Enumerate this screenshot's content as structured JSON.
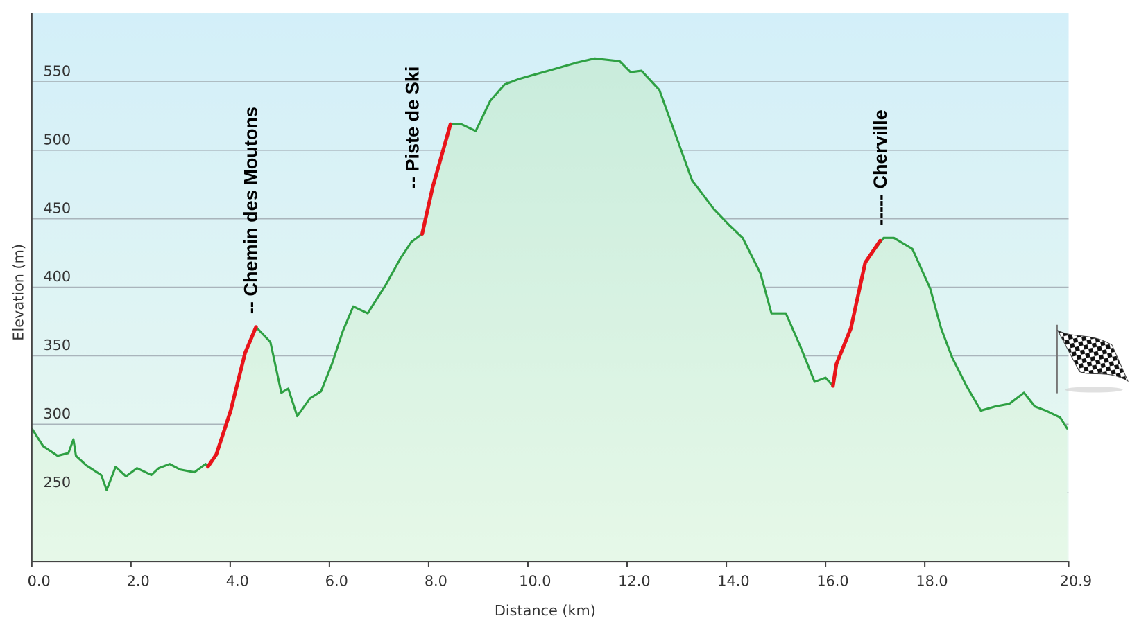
{
  "chart_data": {
    "type": "line",
    "x_label": "Distance  (km)",
    "y_label": "Elevation (m)",
    "xlim": [
      0,
      20.9
    ],
    "ylim": [
      200,
      600
    ],
    "xticks": [
      {
        "value": 0,
        "label": "0.0"
      },
      {
        "value": 2,
        "label": "2.0"
      },
      {
        "value": 4,
        "label": "4.0"
      },
      {
        "value": 6,
        "label": "6.0"
      },
      {
        "value": 8,
        "label": "8.0"
      },
      {
        "value": 10,
        "label": "10.0"
      },
      {
        "value": 12,
        "label": "12.0"
      },
      {
        "value": 14,
        "label": "14.0"
      },
      {
        "value": 16,
        "label": "16.0"
      },
      {
        "value": 18,
        "label": "18.0"
      },
      20.9
    ],
    "yticks": [
      250,
      300,
      350,
      400,
      450,
      500,
      550
    ],
    "grid": true,
    "series": [
      {
        "color": "#2ea043",
        "x": [
          0,
          0.23,
          0.52,
          0.74,
          0.84,
          0.89,
          1.1,
          1.4,
          1.51,
          1.69,
          1.9,
          2.12,
          2.41,
          2.56,
          2.78,
          2.99,
          3.28,
          3.5,
          3.55,
          3.72,
          4.01,
          4.3,
          4.52,
          4.81,
          5.03,
          5.17,
          5.35,
          5.61,
          5.83,
          6.05,
          6.27,
          6.48,
          6.77,
          7.14,
          7.43,
          7.65,
          7.87,
          8.08,
          8.44,
          8.66,
          8.95,
          9.24,
          9.53,
          9.82,
          10.41,
          10.99,
          11.35,
          11.85,
          12.07,
          12.29,
          12.65,
          12.94,
          13.31,
          13.75,
          14.04,
          14.33,
          14.69,
          14.91,
          15.2,
          15.49,
          15.78,
          16.0,
          16.15,
          16.22,
          16.51,
          16.8,
          17.17,
          17.38,
          17.75,
          18.11,
          18.33,
          18.55,
          18.84,
          19.13,
          19.42,
          19.71,
          20.0,
          20.22,
          20.44,
          20.73,
          20.87
        ],
        "values": [
          297,
          284,
          277,
          279,
          289,
          277,
          270,
          263,
          252,
          269,
          262,
          268,
          263,
          268,
          271,
          267,
          265,
          271,
          269,
          278,
          310,
          352,
          371,
          360,
          323,
          326,
          306,
          319,
          324,
          344,
          368,
          386,
          381,
          402,
          421,
          433,
          439,
          473,
          519,
          519,
          514,
          536,
          548,
          552,
          558,
          564,
          567,
          565,
          557,
          558,
          544,
          515,
          478,
          457,
          446,
          436,
          410,
          381,
          381,
          357,
          331,
          334,
          328,
          344,
          370,
          418,
          436,
          436,
          428,
          399,
          370,
          349,
          328,
          310,
          313,
          315,
          323,
          313,
          310,
          305,
          297
        ]
      },
      {
        "color": "#e8141a",
        "x": [
          3.55,
          3.72,
          4.01,
          4.3,
          4.52
        ],
        "values": [
          269,
          278,
          310,
          352,
          371
        ]
      },
      {
        "color": "#e8141a",
        "x": [
          7.87,
          8.08,
          8.44
        ],
        "values": [
          439,
          473,
          519
        ]
      },
      {
        "color": "#e8141a",
        "x": [
          16.15,
          16.22,
          16.51,
          16.8,
          17.1
        ],
        "values": [
          328,
          344,
          370,
          418,
          434
        ]
      }
    ],
    "annotations": [
      "-- Chemin des Moutons",
      "-- Piste de Ski",
      "----- Cherville"
    ]
  }
}
